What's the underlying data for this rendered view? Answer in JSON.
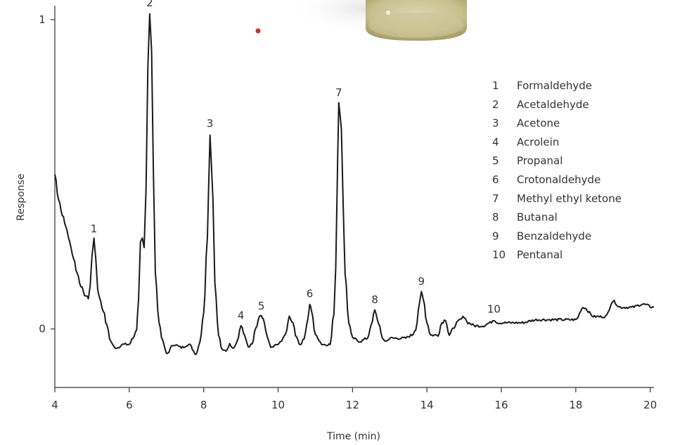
{
  "chart_data": {
    "type": "line",
    "xlabel": "Time (min)",
    "ylabel": "Response",
    "xlim": [
      4,
      20.1
    ],
    "ylim": [
      -0.18,
      1.05
    ],
    "x_ticks": [
      "4",
      "6",
      "8",
      "10",
      "12",
      "14",
      "16",
      "18",
      "20"
    ],
    "y_ticks": [
      "0",
      "1"
    ],
    "grid": false,
    "legend_position": "right",
    "line_color": "#1a1a1a",
    "accent_dot_color": "#d62b2b",
    "peaks": [
      {
        "label": "1",
        "name": "Formaldehyde",
        "x": 5.05,
        "y": 0.29
      },
      {
        "label": "2",
        "name": "Acetaldehyde",
        "x": 6.55,
        "y": 1.02
      },
      {
        "label": "3",
        "name": "Acetone",
        "x": 8.17,
        "y": 0.63
      },
      {
        "label": "4",
        "name": "Acrolein",
        "x": 9.0,
        "y": 0.01
      },
      {
        "label": "5",
        "name": "Propanal",
        "x": 9.55,
        "y": 0.04
      },
      {
        "label": "6",
        "name": "Crotonaldehyde",
        "x": 10.85,
        "y": 0.08
      },
      {
        "label": "7",
        "name": "Methyl ethyl ketone",
        "x": 11.63,
        "y": 0.73
      },
      {
        "label": "8",
        "name": "Butanal",
        "x": 12.6,
        "y": 0.06
      },
      {
        "label": "9",
        "name": "Benzaldehyde",
        "x": 13.85,
        "y": 0.12
      },
      {
        "label": "10",
        "name": "Pentanal",
        "x": 15.8,
        "y": 0.03
      }
    ],
    "series": [
      {
        "x": [
          4.0,
          4.1,
          4.2,
          4.3,
          4.4,
          4.5,
          4.6,
          4.7,
          4.8,
          4.9,
          4.95,
          5.0,
          5.05,
          5.1,
          5.15,
          5.2,
          5.3,
          5.4,
          5.5,
          5.6,
          5.7,
          5.8,
          6.0,
          6.1,
          6.2,
          6.25,
          6.3,
          6.35,
          6.4,
          6.45,
          6.5,
          6.55,
          6.6,
          6.65,
          6.7,
          6.8,
          6.9,
          7.0,
          7.2,
          7.4,
          7.6,
          7.8,
          7.9,
          8.0,
          8.1,
          8.17,
          8.25,
          8.3,
          8.4,
          8.5,
          8.6,
          8.7,
          8.8,
          8.9,
          9.0,
          9.1,
          9.2,
          9.3,
          9.4,
          9.5,
          9.55,
          9.6,
          9.7,
          9.8,
          10.0,
          10.2,
          10.3,
          10.4,
          10.5,
          10.6,
          10.7,
          10.8,
          10.85,
          10.9,
          11.0,
          11.2,
          11.4,
          11.5,
          11.55,
          11.6,
          11.63,
          11.7,
          11.75,
          11.8,
          11.9,
          12.0,
          12.2,
          12.4,
          12.5,
          12.6,
          12.7,
          12.8,
          12.9,
          13.0,
          13.2,
          13.4,
          13.6,
          13.7,
          13.8,
          13.85,
          13.9,
          14.0,
          14.1,
          14.3,
          14.4,
          14.5,
          14.6,
          14.7,
          14.8,
          14.9,
          15.0,
          15.1,
          15.3,
          15.5,
          15.7,
          15.8,
          15.9,
          16.0,
          16.5,
          17.0,
          17.5,
          18.0,
          18.2,
          18.5,
          18.8,
          19.0,
          19.2,
          19.5,
          19.8,
          20.1
        ],
        "y": [
          0.5,
          0.42,
          0.37,
          0.33,
          0.28,
          0.23,
          0.18,
          0.14,
          0.11,
          0.1,
          0.14,
          0.24,
          0.29,
          0.23,
          0.13,
          0.1,
          0.06,
          0.01,
          -0.04,
          -0.06,
          -0.06,
          -0.05,
          -0.05,
          -0.03,
          0.0,
          0.1,
          0.28,
          0.29,
          0.26,
          0.45,
          0.85,
          1.02,
          0.9,
          0.5,
          0.18,
          0.02,
          -0.04,
          -0.08,
          -0.05,
          -0.06,
          -0.05,
          -0.08,
          -0.04,
          0.05,
          0.3,
          0.63,
          0.42,
          0.15,
          -0.02,
          -0.07,
          -0.07,
          -0.05,
          -0.06,
          -0.04,
          0.01,
          -0.02,
          -0.06,
          -0.05,
          0.0,
          0.04,
          0.04,
          0.03,
          -0.02,
          -0.06,
          -0.05,
          -0.02,
          0.04,
          0.02,
          -0.03,
          -0.05,
          -0.03,
          0.03,
          0.08,
          0.06,
          -0.02,
          -0.05,
          -0.05,
          0.05,
          0.2,
          0.55,
          0.73,
          0.65,
          0.4,
          0.18,
          0.02,
          -0.03,
          -0.04,
          -0.03,
          0.01,
          0.06,
          0.02,
          -0.03,
          -0.04,
          -0.03,
          -0.03,
          -0.03,
          -0.02,
          0.0,
          0.08,
          0.12,
          0.1,
          0.02,
          -0.02,
          -0.02,
          0.02,
          0.03,
          -0.02,
          0.0,
          0.02,
          0.03,
          0.04,
          0.02,
          0.01,
          0.01,
          0.02,
          0.03,
          0.02,
          0.02,
          0.02,
          0.03,
          0.03,
          0.03,
          0.07,
          0.04,
          0.04,
          0.09,
          0.07,
          0.07,
          0.08,
          0.07
        ]
      }
    ],
    "legend": [
      {
        "num": "1",
        "name": "Formaldehyde"
      },
      {
        "num": "2",
        "name": "Acetaldehyde"
      },
      {
        "num": "3",
        "name": "Acetone"
      },
      {
        "num": "4",
        "name": "Acrolein"
      },
      {
        "num": "5",
        "name": "Propanal"
      },
      {
        "num": "6",
        "name": "Crotonaldehyde"
      },
      {
        "num": "7",
        "name": "Methyl ethyl ketone"
      },
      {
        "num": "8",
        "name": "Butanal"
      },
      {
        "num": "9",
        "name": "Benzaldehyde"
      },
      {
        "num": "10",
        "name": "Pentanal"
      }
    ]
  }
}
